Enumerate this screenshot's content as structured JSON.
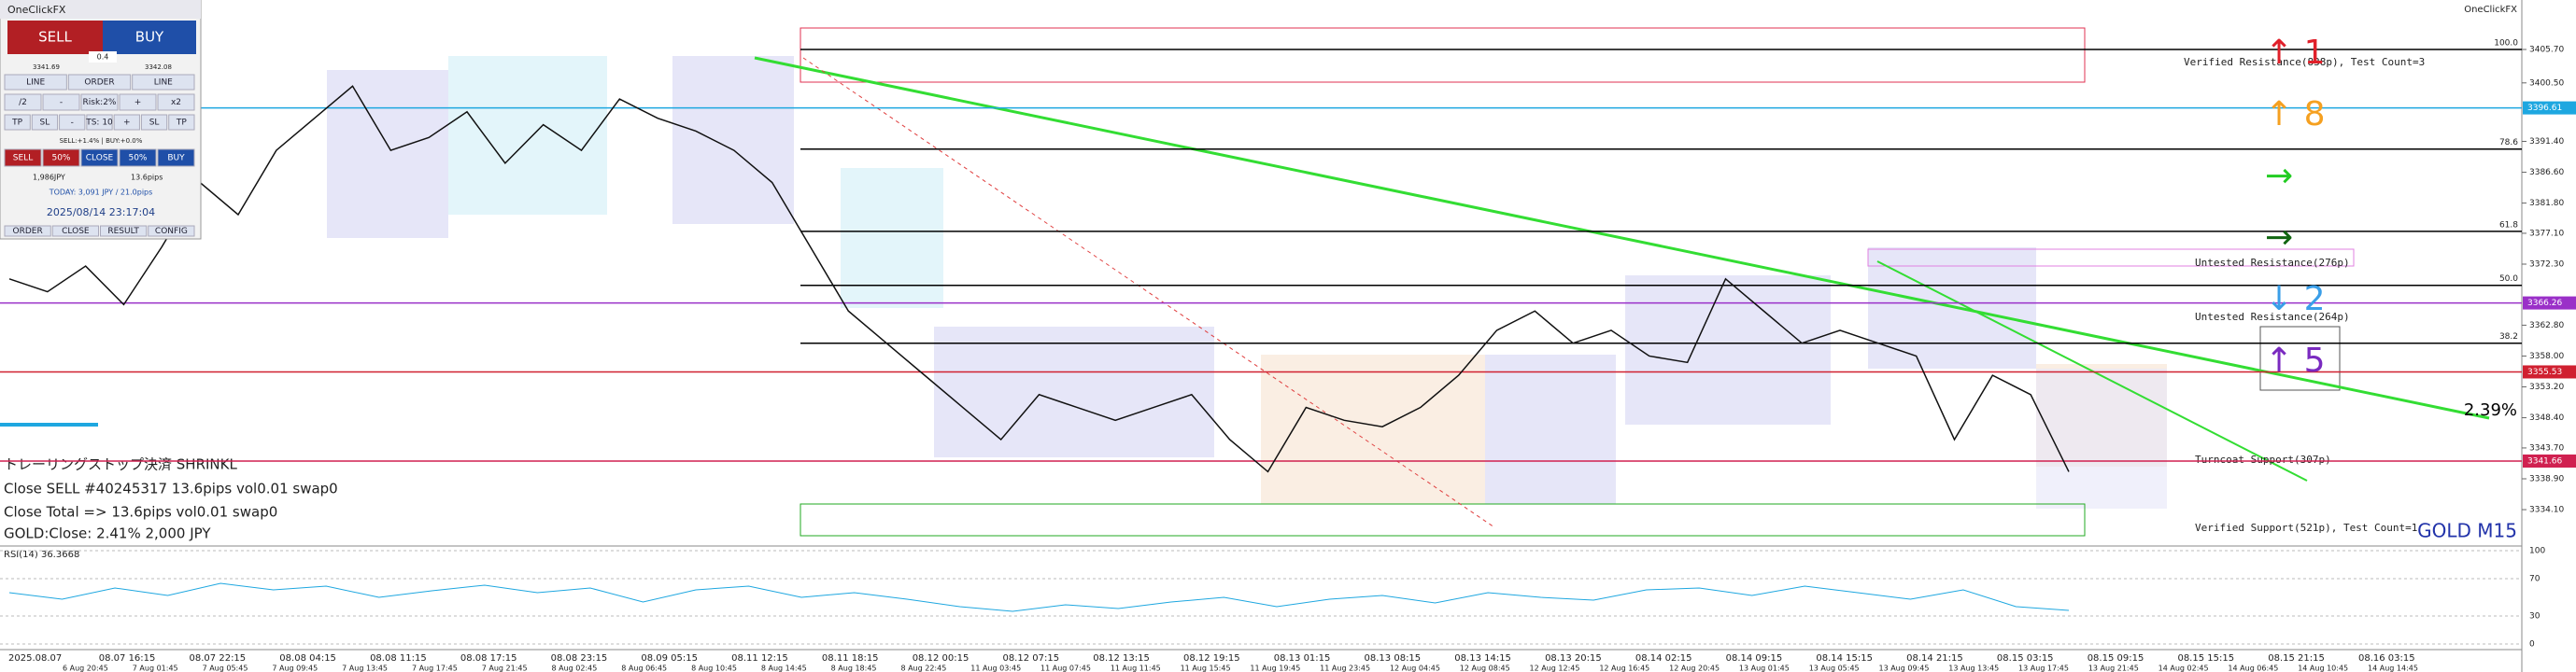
{
  "panel": {
    "title": "OneClickFX",
    "sell": "SELL",
    "buy": "BUY",
    "lot": "0.4",
    "bid": "3341.69",
    "ask": "3342.08",
    "row1": [
      "LINE",
      "ORDER",
      "LINE"
    ],
    "row2": [
      "/2",
      "-",
      "Risk:2%",
      "+",
      "x2"
    ],
    "row3": [
      "TP",
      "SL",
      "-",
      "TS: 10",
      "+",
      "SL",
      "TP"
    ],
    "status": "SELL:+1.4% | BUY:+0.0%",
    "row4": [
      "SELL",
      "50%",
      "CLOSE",
      "50%",
      "BUY"
    ],
    "pnl_jpy": "1,986JPY",
    "pnl_pips": "13.6pips",
    "today": "TODAY: 3,091 JPY / 21.0pips",
    "clock": "2025/08/14 23:17:04",
    "tabs": [
      "ORDER",
      "CLOSE",
      "RESULT",
      "CONFIG"
    ]
  },
  "chart": {
    "brand": "OneClickFX",
    "symbol": "GOLD M15",
    "change": "2.39%",
    "zones": [
      "Verified Resistance(838p), Test Count=3",
      "Untested Resistance(276p)",
      "Untested Resistance(264p)",
      "Turncoat Support(307p)",
      "Verified Support(521p), Test Count=1"
    ],
    "log": [
      "トレーリングストップ決済 SHRINKL",
      "Close SELL #40245317 13.6pips vol0.01 swap0",
      "Close Total => 13.6pips vol0.01 swap0",
      "GOLD:Close: 2.41% 2,000 JPY"
    ],
    "signals": [
      {
        "label": "↑ 1",
        "color": "#e0202a"
      },
      {
        "label": "↑ 8",
        "color": "#f5a020"
      },
      {
        "label": "→",
        "color": "#22cc22"
      },
      {
        "label": "→",
        "color": "#116611"
      },
      {
        "label": "↓ 2",
        "color": "#3a9ee8"
      },
      {
        "label": "↑ 5",
        "color": "#7a2ac0"
      }
    ],
    "fibo": [
      {
        "value": 3405.7,
        "label": "100.0"
      },
      {
        "value": 3390.2,
        "label": "78.6"
      },
      {
        "value": 3377.4,
        "label": "61.8"
      },
      {
        "value": 3369.0,
        "label": "50.0"
      },
      {
        "value": 3360.0,
        "label": "38.2"
      }
    ],
    "price_axis": [
      {
        "value": 3405.7,
        "label": "3405.70"
      },
      {
        "value": 3400.5,
        "label": "3400.50"
      },
      {
        "value": 3391.4,
        "label": "3391.40"
      },
      {
        "value": 3386.6,
        "label": "3386.60"
      },
      {
        "value": 3381.8,
        "label": "3381.80"
      },
      {
        "value": 3377.1,
        "label": "3377.10"
      },
      {
        "value": 3372.3,
        "label": "3372.30"
      },
      {
        "value": 3362.8,
        "label": "3362.80"
      },
      {
        "value": 3358.0,
        "label": "3358.00"
      },
      {
        "value": 3353.2,
        "label": "3353.20"
      },
      {
        "value": 3348.4,
        "label": "3348.40"
      },
      {
        "value": 3343.7,
        "label": "3343.70"
      },
      {
        "value": 3338.9,
        "label": "3338.90"
      },
      {
        "value": 3334.1,
        "label": "3334.10"
      }
    ],
    "price_marks": [
      {
        "value": 3396.61,
        "label": "3396.61",
        "color": "#1ea7e0"
      },
      {
        "value": 3366.26,
        "label": "3366.26",
        "color": "#9a30c8"
      },
      {
        "value": 3355.53,
        "label": "3355.53",
        "color": "#d02030"
      },
      {
        "value": 3341.66,
        "label": "3341.66",
        "color": "#d02050"
      }
    ],
    "price": [
      3370,
      3368,
      3372,
      3366,
      3375,
      3385,
      3380,
      3390,
      3395,
      3400,
      3390,
      3392,
      3396,
      3388,
      3394,
      3390,
      3398,
      3395,
      3393,
      3390,
      3385,
      3375,
      3365,
      3360,
      3355,
      3350,
      3345,
      3352,
      3350,
      3348,
      3350,
      3352,
      3345,
      3340,
      3350,
      3348,
      3347,
      3350,
      3355,
      3362,
      3365,
      3360,
      3362,
      3358,
      3357,
      3370,
      3365,
      3360,
      3362,
      3360,
      3358,
      3345,
      3355,
      3352,
      3340
    ],
    "rsi_title": "RSI(14) 36.3668",
    "rsi_levels": [
      100,
      70,
      30,
      0
    ],
    "rsi": [
      55,
      48,
      60,
      52,
      65,
      58,
      62,
      50,
      57,
      63,
      55,
      60,
      45,
      58,
      62,
      50,
      55,
      48,
      40,
      35,
      42,
      38,
      45,
      50,
      40,
      48,
      52,
      44,
      55,
      50,
      47,
      58,
      60,
      52,
      62,
      55,
      48,
      58,
      40,
      36
    ],
    "time_top": [
      "2025.08.07",
      "08.07 16:15",
      "08.07 22:15",
      "08.08 04:15",
      "08.08 11:15",
      "08.08 17:15",
      "08.08 23:15",
      "08.09 05:15",
      "08.11 12:15",
      "08.11 18:15",
      "08.12 00:15",
      "08.12 07:15",
      "08.12 13:15",
      "08.12 19:15",
      "08.13 01:15",
      "08.13 08:15",
      "08.13 14:15",
      "08.13 20:15",
      "08.14 02:15",
      "08.14 09:15",
      "08.14 15:15",
      "08.14 21:15",
      "08.15 03:15",
      "08.15 09:15",
      "08.15 15:15",
      "08.15 21:15",
      "08.16 03:15"
    ],
    "time_bottom": [
      "6 Aug 20:45",
      "7 Aug 01:45",
      "7 Aug 05:45",
      "7 Aug 09:45",
      "7 Aug 13:45",
      "7 Aug 17:45",
      "7 Aug 21:45",
      "8 Aug 02:45",
      "8 Aug 06:45",
      "8 Aug 10:45",
      "8 Aug 14:45",
      "8 Aug 18:45",
      "8 Aug 22:45",
      "11 Aug 03:45",
      "11 Aug 07:45",
      "11 Aug 11:45",
      "11 Aug 15:45",
      "11 Aug 19:45",
      "11 Aug 23:45",
      "12 Aug 04:45",
      "12 Aug 08:45",
      "12 Aug 12:45",
      "12 Aug 16:45",
      "12 Aug 20:45",
      "13 Aug 01:45",
      "13 Aug 05:45",
      "13 Aug 09:45",
      "13 Aug 13:45",
      "13 Aug 17:45",
      "13 Aug 21:45",
      "14 Aug 02:45",
      "14 Aug 06:45",
      "14 Aug 10:45",
      "14 Aug 14:45"
    ]
  }
}
